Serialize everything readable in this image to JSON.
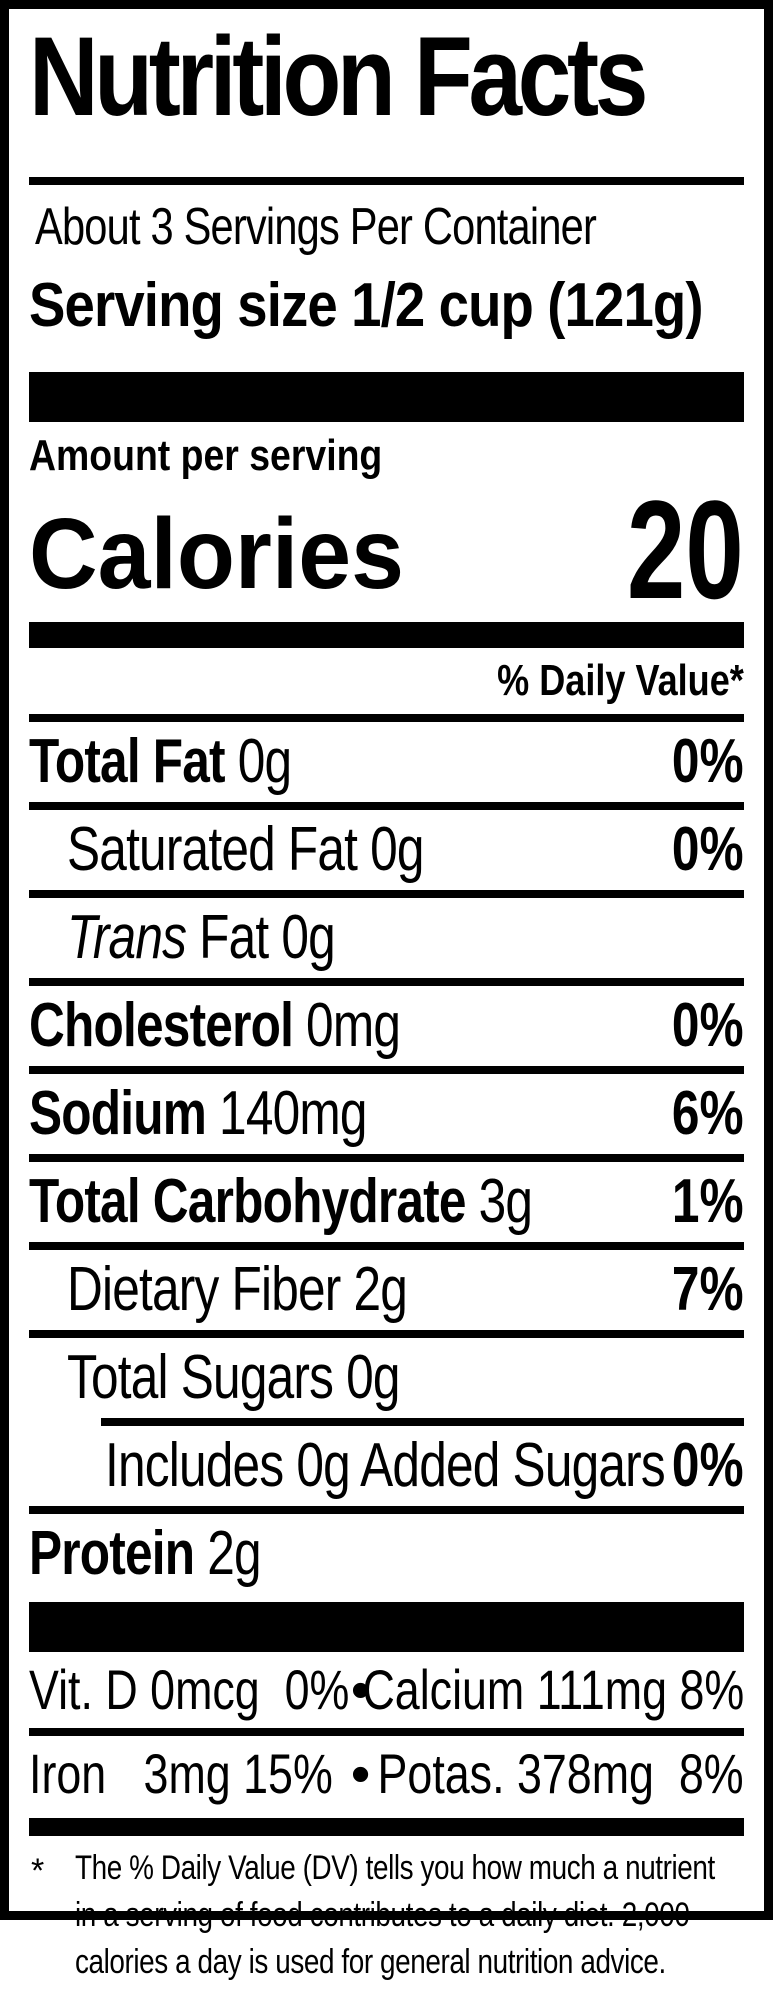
{
  "colors": {
    "ink": "#000000",
    "paper": "#ffffff"
  },
  "label": {
    "title": "Nutrition Facts",
    "servings_per_container": "About 3 Servings Per Container",
    "serving_size": "Serving size 1/2 cup (121g)",
    "amount_per_serving": "Amount per serving",
    "calories_label": "Calories",
    "calories_value": "20",
    "daily_value_header": "% Daily Value*",
    "rows": [
      {
        "strong": "Total Fat",
        "rest": " 0g",
        "dv": "0%"
      },
      {
        "strong": "",
        "rest": "Saturated Fat 0g",
        "dv": "0%"
      },
      {
        "strong": "",
        "em": "Trans",
        "rest": " Fat 0g",
        "dv": ""
      },
      {
        "strong": "Cholesterol",
        "rest": " 0mg",
        "dv": "0%"
      },
      {
        "strong": "Sodium",
        "rest": " 140mg",
        "dv": "6%"
      },
      {
        "strong": "Total Carbohydrate",
        "rest": " 3g",
        "dv": "1%"
      },
      {
        "strong": "",
        "rest": "Dietary Fiber 2g",
        "dv": "7%"
      },
      {
        "strong": "",
        "rest": "Total Sugars 0g",
        "dv": ""
      },
      {
        "strong": "",
        "rest": "Includes 0g Added Sugars",
        "dv": "0%"
      },
      {
        "strong": "Protein",
        "rest": " 2g",
        "dv": ""
      }
    ],
    "bullet": "•",
    "vitamins": [
      {
        "left": "Vit. D 0mcg  0%",
        "right": "Calcium 111mg 8%"
      },
      {
        "left": "Iron   3mg 15%",
        "right": "Potas. 378mg  8%"
      }
    ],
    "footnote_marker": "*",
    "footnote_lines": [
      "The % Daily Value (DV) tells you how much a nutrient",
      "in a serving of food contributes to a daily diet. 2,000",
      "calories a day is used for general nutrition advice."
    ]
  }
}
